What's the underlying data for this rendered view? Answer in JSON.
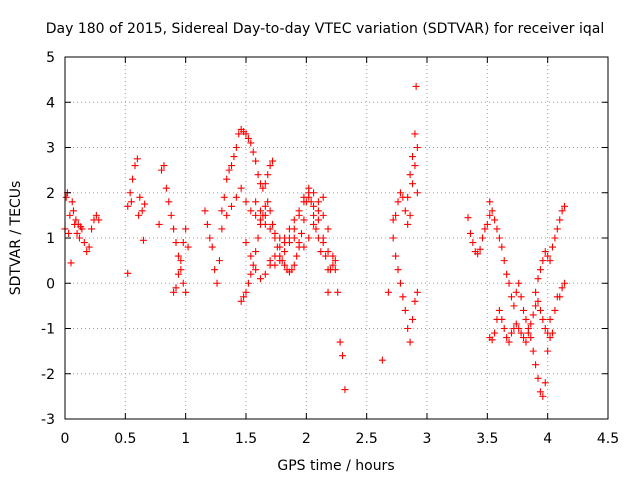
{
  "chart_data": {
    "type": "scatter",
    "title": "Day 180 of 2015, Sidereal Day-to-day VTEC variation (SDTVAR) for receiver iqal",
    "xlabel": "GPS time / hours",
    "ylabel": "SDTVAR / TECUs",
    "xlim": [
      0,
      4.5
    ],
    "ylim": [
      -3,
      5
    ],
    "xticks": [
      0,
      0.5,
      1,
      1.5,
      2,
      2.5,
      3,
      3.5,
      4,
      4.5
    ],
    "xtick_labels": [
      "0",
      "0.5",
      "1",
      "1.5",
      "2",
      "2.5",
      "3",
      "3.5",
      "4",
      "4.5"
    ],
    "yticks": [
      -3,
      -2,
      -1,
      0,
      1,
      2,
      3,
      4,
      5
    ],
    "ytick_labels": [
      "-3",
      "-2",
      "-1",
      "0",
      "1",
      "2",
      "3",
      "4",
      "5"
    ],
    "grid": true,
    "marker": "+",
    "color": "#ff0000",
    "series": [
      {
        "name": "SDTVAR",
        "segments": [
          {
            "x": [
              0.0,
              0.02,
              0.04,
              0.06,
              0.08,
              0.1,
              0.12,
              0.14,
              0.16,
              0.18,
              0.2,
              0.22,
              0.24,
              0.26,
              0.28
            ],
            "y": [
              1.2,
              2.0,
              1.5,
              1.8,
              1.3,
              1.1,
              1.0,
              1.2,
              0.9,
              0.7,
              0.8,
              1.2,
              1.4,
              1.5,
              1.4
            ]
          },
          {
            "x": [
              0.01,
              0.03,
              0.05,
              0.07,
              0.09,
              0.11,
              0.13
            ],
            "y": [
              1.9,
              1.1,
              0.45,
              1.6,
              1.4,
              1.3,
              1.25
            ]
          },
          {
            "x": [
              0.52,
              0.54,
              0.56,
              0.58,
              0.6,
              0.62,
              0.64,
              0.66
            ],
            "y": [
              1.7,
              2.0,
              2.3,
              2.6,
              2.75,
              1.9,
              1.6,
              1.75
            ]
          },
          {
            "x": [
              0.52,
              0.55,
              0.61,
              0.65
            ],
            "y": [
              0.22,
              1.8,
              1.5,
              0.95
            ]
          },
          {
            "x": [
              0.78,
              0.8,
              0.82,
              0.84,
              0.86,
              0.88,
              0.9,
              0.92,
              0.94,
              0.96,
              0.98,
              1.0,
              1.02
            ],
            "y": [
              1.3,
              2.5,
              2.6,
              2.1,
              1.8,
              1.5,
              1.2,
              0.9,
              0.6,
              0.3,
              0.0,
              -0.2,
              0.8
            ]
          },
          {
            "x": [
              0.9,
              0.92,
              0.94,
              0.96,
              0.98,
              1.0
            ],
            "y": [
              -0.2,
              -0.1,
              0.2,
              0.5,
              0.9,
              1.2
            ]
          },
          {
            "x": [
              1.16,
              1.18,
              1.2,
              1.22,
              1.24,
              1.26,
              1.28,
              1.3,
              1.32,
              1.34,
              1.36,
              1.38,
              1.4,
              1.42,
              1.44,
              1.46,
              1.48,
              1.5,
              1.52,
              1.54,
              1.56,
              1.58,
              1.6,
              1.62,
              1.64,
              1.66,
              1.68,
              1.7,
              1.72
            ],
            "y": [
              1.6,
              1.3,
              1.0,
              0.8,
              0.3,
              0.0,
              0.5,
              1.2,
              1.9,
              2.3,
              2.5,
              2.6,
              2.8,
              3.0,
              3.3,
              3.4,
              3.35,
              3.3,
              3.2,
              3.1,
              2.9,
              2.7,
              2.4,
              2.2,
              2.1,
              2.2,
              2.4,
              2.6,
              2.7
            ]
          },
          {
            "x": [
              1.46,
              1.48,
              1.5,
              1.52,
              1.54,
              1.56,
              1.58,
              1.6,
              1.62,
              1.64,
              1.66,
              1.68,
              1.7,
              1.72,
              1.74,
              1.76,
              1.78,
              1.8,
              1.82,
              1.84,
              1.86,
              1.88,
              1.9,
              1.92,
              1.94,
              1.96,
              1.98,
              2.0,
              2.02,
              2.04,
              2.06,
              2.08,
              2.1
            ],
            "y": [
              -0.4,
              -0.3,
              -0.2,
              0.0,
              0.2,
              0.4,
              0.7,
              1.0,
              1.3,
              1.5,
              1.7,
              1.8,
              1.6,
              1.3,
              1.0,
              0.8,
              0.6,
              0.5,
              0.4,
              0.3,
              0.25,
              0.3,
              0.4,
              0.6,
              0.8,
              1.1,
              1.4,
              1.8,
              2.0,
              1.8,
              1.5,
              1.2,
              1.0
            ]
          },
          {
            "x": [
              1.3,
              1.34,
              1.38,
              1.42,
              1.46,
              1.5,
              1.54,
              1.58,
              1.62,
              1.66,
              1.7,
              1.74,
              1.78,
              1.82,
              1.86,
              1.9,
              1.94,
              1.98,
              2.02,
              2.06,
              2.1,
              2.14,
              2.18
            ],
            "y": [
              1.6,
              1.5,
              1.7,
              1.9,
              2.1,
              1.8,
              1.6,
              1.5,
              1.4,
              1.3,
              1.2,
              1.1,
              1.0,
              0.9,
              1.0,
              1.2,
              1.5,
              1.9,
              2.1,
              2.0,
              1.8,
              1.5,
              1.2
            ]
          },
          {
            "x": [
              1.5,
              1.54,
              1.58,
              1.62,
              1.66,
              1.7,
              1.74,
              1.78,
              1.82,
              1.86,
              1.9,
              1.94,
              1.98,
              2.02,
              2.06,
              2.1,
              2.14,
              2.18
            ],
            "y": [
              0.9,
              0.6,
              0.3,
              0.1,
              0.2,
              0.4,
              0.6,
              0.8,
              1.0,
              1.2,
              1.4,
              1.6,
              1.8,
              1.9,
              1.7,
              1.4,
              1.0,
              0.7
            ]
          },
          {
            "x": [
              1.58,
              1.62,
              1.66,
              1.7,
              1.74,
              1.78,
              1.82,
              1.86,
              1.9,
              1.94,
              1.98,
              2.02,
              2.06,
              2.1,
              2.14,
              2.18,
              2.22,
              2.24
            ],
            "y": [
              1.8,
              1.6,
              1.5,
              0.5,
              0.4,
              0.5,
              0.7,
              0.9,
              1.0,
              0.9,
              0.8,
              1.0,
              1.3,
              1.6,
              1.9,
              0.3,
              0.6,
              0.5
            ]
          },
          {
            "x": [
              2.2,
              2.22,
              2.24,
              2.26,
              2.28,
              2.3,
              2.32
            ],
            "y": [
              0.3,
              0.4,
              0.3,
              -0.2,
              -1.3,
              -1.6,
              -2.35
            ]
          },
          {
            "x": [
              2.12,
              2.14,
              2.16,
              2.18
            ],
            "y": [
              0.7,
              0.9,
              0.6,
              -0.2
            ]
          },
          {
            "x": [
              2.63,
              2.68,
              2.72,
              2.74,
              2.76,
              2.78,
              2.8,
              2.82,
              2.84,
              2.86,
              2.88,
              2.9,
              2.92
            ],
            "y": [
              -1.7,
              -0.2,
              1.0,
              0.6,
              0.3,
              0.0,
              -0.3,
              -0.6,
              -1.0,
              -1.3,
              -0.8,
              -0.4,
              -0.2
            ]
          },
          {
            "x": [
              2.72,
              2.74,
              2.76,
              2.78,
              2.8,
              2.82,
              2.84,
              2.86,
              2.88,
              2.9,
              2.92
            ],
            "y": [
              1.4,
              1.5,
              1.8,
              2.0,
              1.9,
              1.6,
              1.3,
              1.5,
              2.2,
              2.6,
              3.0
            ]
          },
          {
            "x": [
              2.84,
              2.86,
              2.88,
              2.9,
              2.91,
              2.92
            ],
            "y": [
              1.9,
              2.4,
              2.8,
              3.3,
              4.35,
              2.0
            ]
          },
          {
            "x": [
              3.34,
              3.36,
              3.38,
              3.4,
              3.42,
              3.44,
              3.46,
              3.48,
              3.5,
              3.52
            ],
            "y": [
              1.45,
              1.1,
              0.9,
              0.7,
              0.65,
              0.75,
              1.0,
              1.2,
              1.3,
              1.5
            ]
          },
          {
            "x": [
              3.52,
              3.54,
              3.56,
              3.58,
              3.6,
              3.62,
              3.64,
              3.66,
              3.68,
              3.7,
              3.72,
              3.74,
              3.76,
              3.78,
              3.8,
              3.82,
              3.84,
              3.86,
              3.88,
              3.9,
              3.92,
              3.94,
              3.96,
              3.98,
              4.0,
              4.02
            ],
            "y": [
              1.8,
              1.6,
              1.4,
              1.2,
              1.0,
              0.8,
              0.5,
              0.2,
              0.0,
              -0.3,
              -0.5,
              -0.2,
              0.0,
              -0.3,
              -0.6,
              -0.8,
              -1.0,
              -1.2,
              -1.5,
              -1.8,
              -2.1,
              -2.4,
              -2.5,
              -2.2,
              -1.5,
              -0.8
            ]
          },
          {
            "x": [
              3.52,
              3.54,
              3.56,
              3.58,
              3.6,
              3.62,
              3.64,
              3.66,
              3.68,
              3.7,
              3.72,
              3.74,
              3.76,
              3.78,
              3.8,
              3.82,
              3.84,
              3.86,
              3.88,
              3.9,
              3.92,
              3.94,
              3.96,
              3.98,
              4.0,
              4.02,
              4.04,
              4.06,
              4.08
            ],
            "y": [
              -1.2,
              -1.25,
              -1.1,
              -0.8,
              -0.6,
              -0.8,
              -1.0,
              -1.2,
              -1.3,
              -1.1,
              -1.0,
              -0.9,
              -1.0,
              -1.1,
              -1.2,
              -1.3,
              -1.1,
              -0.9,
              -0.7,
              -0.5,
              -0.4,
              -0.6,
              -0.8,
              -1.0,
              -1.1,
              -1.2,
              -1.1,
              -0.6,
              -0.3
            ]
          },
          {
            "x": [
              3.9,
              3.92,
              3.94,
              3.96,
              3.98,
              4.0,
              4.02,
              4.04,
              4.06,
              4.08,
              4.1,
              4.12,
              4.14
            ],
            "y": [
              -0.2,
              0.1,
              0.3,
              0.5,
              0.7,
              0.6,
              0.5,
              0.8,
              1.0,
              1.2,
              1.4,
              1.6,
              1.7
            ]
          },
          {
            "x": [
              4.1,
              4.12,
              4.14
            ],
            "y": [
              -0.3,
              -0.1,
              0.0
            ]
          }
        ]
      }
    ]
  }
}
